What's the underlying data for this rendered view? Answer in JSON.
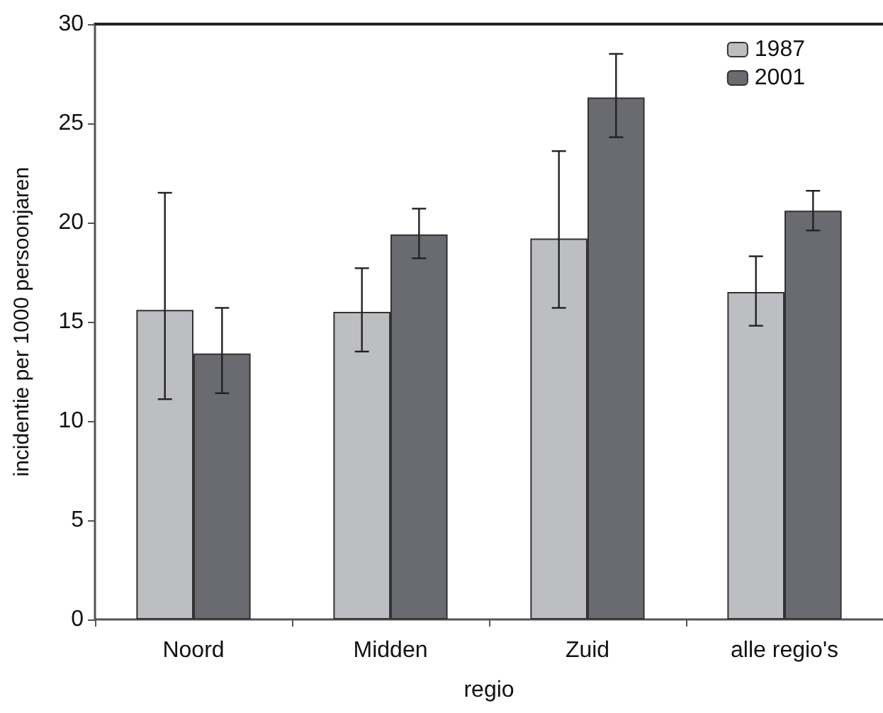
{
  "chart_data": {
    "type": "bar",
    "xlabel": "regio",
    "ylabel": "incidentie per 1000 persoonjaren",
    "categories": [
      "Noord",
      "Midden",
      "Zuid",
      "alle regio's"
    ],
    "series": [
      {
        "name": "1987",
        "color": "#bdbec2",
        "values": [
          15.6,
          15.5,
          19.2,
          16.5
        ],
        "errors": [
          [
            11.1,
            21.5
          ],
          [
            13.5,
            17.7
          ],
          [
            15.7,
            23.6
          ],
          [
            14.8,
            18.3
          ]
        ]
      },
      {
        "name": "2001",
        "color": "#6a6b70",
        "values": [
          13.4,
          19.4,
          26.3,
          20.6
        ],
        "errors": [
          [
            11.4,
            15.7
          ],
          [
            18.2,
            20.7
          ],
          [
            24.3,
            28.5
          ],
          [
            19.6,
            21.6
          ]
        ]
      }
    ],
    "ylim": [
      0,
      30
    ],
    "yticks": [
      0,
      5,
      10,
      15,
      20,
      25,
      30
    ],
    "grid": false,
    "legend": "top right"
  }
}
